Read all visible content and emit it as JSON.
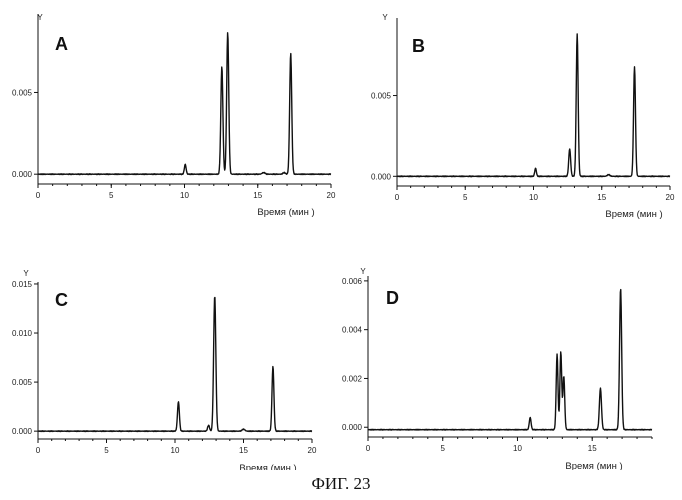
{
  "figure_caption": "ФИГ. 23",
  "chart_data": [
    {
      "type": "line",
      "panel_label": "A",
      "xlabel": "Время (мин )",
      "ylabel": "Y",
      "xlim": [
        0,
        20
      ],
      "ylim": [
        -0.0006,
        0.0098
      ],
      "x_ticks": [
        0,
        5,
        10,
        15,
        20
      ],
      "y_ticks": [
        0.0,
        0.005
      ],
      "y_tick_labels": [
        "0.000",
        "0.005"
      ],
      "baseline": 0.0,
      "peaks": [
        {
          "x": 10.05,
          "height": 0.0006,
          "width": 0.06
        },
        {
          "x": 12.55,
          "height": 0.0066,
          "width": 0.07
        },
        {
          "x": 12.95,
          "height": 0.0087,
          "width": 0.07
        },
        {
          "x": 15.4,
          "height": 0.0001,
          "width": 0.1
        },
        {
          "x": 16.8,
          "height": 0.0001,
          "width": 0.08
        },
        {
          "x": 17.25,
          "height": 0.0074,
          "width": 0.07
        }
      ]
    },
    {
      "type": "line",
      "panel_label": "B",
      "xlabel": "Время (мин )",
      "ylabel": "Y",
      "xlim": [
        0,
        20
      ],
      "ylim": [
        -0.0006,
        0.0098
      ],
      "x_ticks": [
        0,
        5,
        10,
        15,
        20
      ],
      "y_ticks": [
        0.0,
        0.005
      ],
      "y_tick_labels": [
        "0.000",
        "0.005"
      ],
      "baseline": 0.0,
      "peaks": [
        {
          "x": 10.15,
          "height": 0.0005,
          "width": 0.06
        },
        {
          "x": 12.65,
          "height": 0.0017,
          "width": 0.07
        },
        {
          "x": 13.2,
          "height": 0.0088,
          "width": 0.07
        },
        {
          "x": 15.5,
          "height": 0.0001,
          "width": 0.1
        },
        {
          "x": 17.4,
          "height": 0.0068,
          "width": 0.07
        }
      ]
    },
    {
      "type": "line",
      "panel_label": "C",
      "xlabel": "Время (мин )",
      "ylabel": "Y",
      "xlim": [
        0,
        20
      ],
      "ylim": [
        -0.0008,
        0.0152
      ],
      "x_ticks": [
        0,
        5,
        10,
        15,
        20
      ],
      "y_ticks": [
        0.0,
        0.005,
        0.01,
        0.015
      ],
      "y_tick_labels": [
        "0.000",
        "0.005",
        "0.010",
        "0.015"
      ],
      "baseline": 0.0,
      "peaks": [
        {
          "x": 10.25,
          "height": 0.003,
          "width": 0.07
        },
        {
          "x": 12.45,
          "height": 0.0006,
          "width": 0.07
        },
        {
          "x": 12.9,
          "height": 0.0138,
          "width": 0.08
        },
        {
          "x": 15.0,
          "height": 0.0002,
          "width": 0.1
        },
        {
          "x": 17.15,
          "height": 0.0066,
          "width": 0.07
        }
      ]
    },
    {
      "type": "line",
      "panel_label": "D",
      "xlabel": "Время (мин )",
      "ylabel": "Y",
      "xlim": [
        0,
        19
      ],
      "ylim": [
        -0.0004,
        0.0062
      ],
      "x_ticks": [
        0,
        5,
        10,
        15
      ],
      "y_ticks": [
        0.0,
        0.002,
        0.004,
        0.006
      ],
      "y_tick_labels": [
        "0.000",
        "0.002",
        "0.004",
        "0.006"
      ],
      "baseline": -0.0001,
      "peaks": [
        {
          "x": 10.85,
          "height": 0.0005,
          "width": 0.06
        },
        {
          "x": 12.65,
          "height": 0.0031,
          "width": 0.06
        },
        {
          "x": 12.9,
          "height": 0.0032,
          "width": 0.06
        },
        {
          "x": 13.1,
          "height": 0.0022,
          "width": 0.06
        },
        {
          "x": 15.55,
          "height": 0.0017,
          "width": 0.07
        },
        {
          "x": 16.9,
          "height": 0.0058,
          "width": 0.07
        }
      ]
    }
  ]
}
